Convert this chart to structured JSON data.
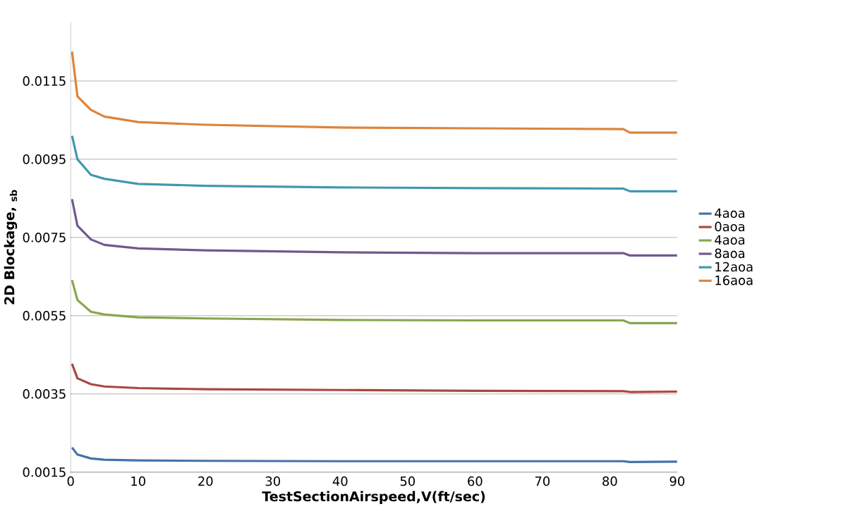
{
  "chart_data": {
    "type": "line",
    "xlabel": "TestSectionAirspeed,V(ft/sec)",
    "ylabel": "2D Blockage, $_{sb}$",
    "xlim": [
      0,
      90
    ],
    "xticks": [
      0,
      10,
      20,
      30,
      40,
      50,
      60,
      70,
      80,
      90
    ],
    "ylim": [
      0.0015,
      0.013
    ],
    "yticks": [
      0.0015,
      0.0035,
      0.0055,
      0.0075,
      0.0095,
      0.0115
    ],
    "grid": "y",
    "legend": "right",
    "marker": "none",
    "line_style": "solid",
    "x": [
      0.2,
      1,
      3,
      5,
      10,
      20,
      40,
      60,
      82,
      83,
      90
    ],
    "series": [
      {
        "name": "4aoa",
        "color": "#4572a7",
        "values": [
          0.00213,
          0.00195,
          0.00185,
          0.00182,
          0.0018,
          0.00179,
          0.00178,
          0.00178,
          0.00178,
          0.00176,
          0.00177
        ]
      },
      {
        "name": "0aoa",
        "color": "#aa4643",
        "values": [
          0.00427,
          0.0039,
          0.00375,
          0.00369,
          0.00365,
          0.00362,
          0.0036,
          0.00358,
          0.00357,
          0.00355,
          0.00356
        ]
      },
      {
        "name": "4aoa",
        "color": "#89a54e",
        "values": [
          0.00641,
          0.0059,
          0.0056,
          0.00553,
          0.00546,
          0.00543,
          0.00539,
          0.00538,
          0.00538,
          0.00531,
          0.00531
        ]
      },
      {
        "name": "8aoa",
        "color": "#71588f",
        "values": [
          0.00848,
          0.0078,
          0.00745,
          0.00731,
          0.00722,
          0.00717,
          0.00712,
          0.0071,
          0.0071,
          0.00704,
          0.00704
        ]
      },
      {
        "name": "12aoa",
        "color": "#4198af",
        "values": [
          0.0101,
          0.0095,
          0.0091,
          0.009,
          0.00887,
          0.00882,
          0.00878,
          0.00876,
          0.00875,
          0.00868,
          0.00868
        ]
      },
      {
        "name": "16aoa",
        "color": "#db843d",
        "values": [
          0.01225,
          0.01111,
          0.01076,
          0.01059,
          0.01045,
          0.01038,
          0.01031,
          0.01029,
          0.01027,
          0.01018,
          0.01018
        ]
      }
    ]
  }
}
